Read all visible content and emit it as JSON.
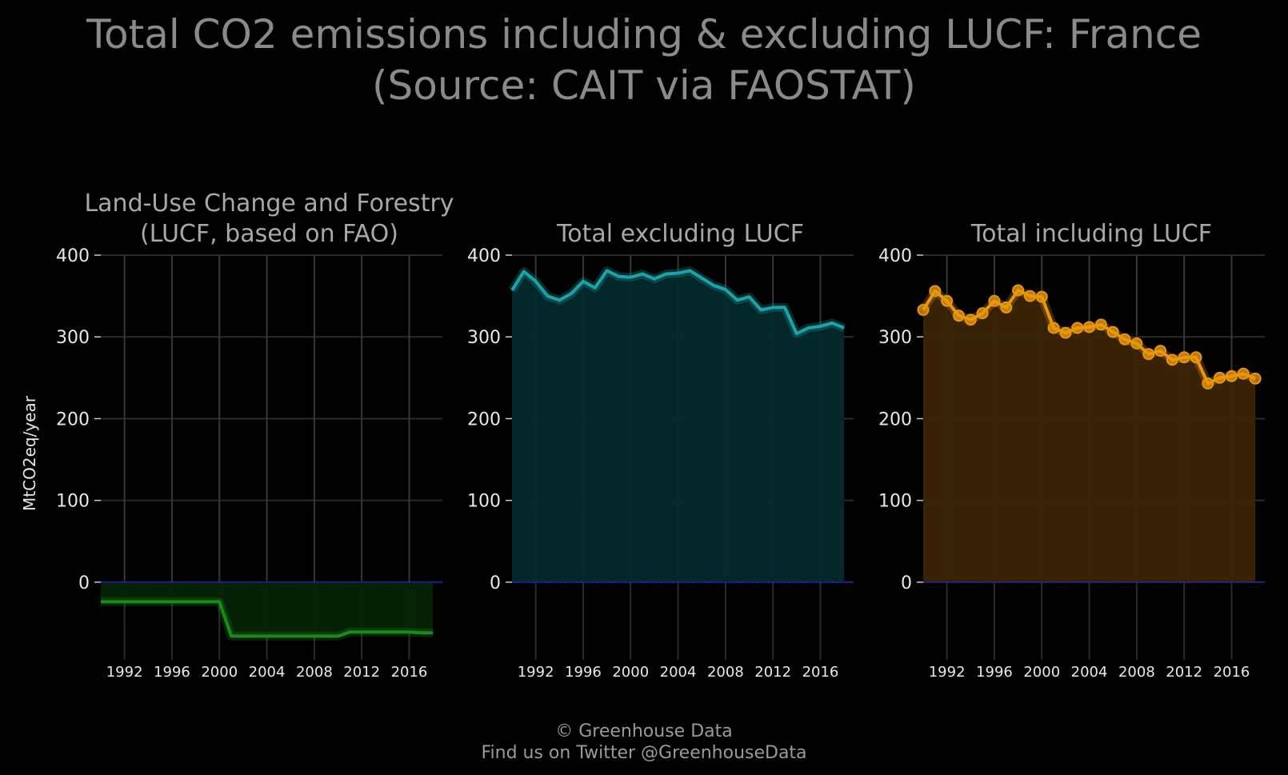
{
  "title": {
    "line1": "Total CO2 emissions including & excluding LUCF: France",
    "line2": "(Source: CAIT via FAOSTAT)"
  },
  "credit": {
    "line1": "© Greenhouse Data",
    "line2": "Find us on Twitter @GreenhouseData"
  },
  "chart_data": [
    {
      "type": "area",
      "title_lines": [
        "Land-Use Change and Forestry",
        "(LUCF, based on FAO)"
      ],
      "ylabel": "MtCO2eq/year",
      "xlabel": "",
      "color": "#1a8a1a",
      "fill_color": "#062406",
      "markers": false,
      "ylim": [
        -95,
        400
      ],
      "yticks": [
        0,
        100,
        200,
        300,
        400
      ],
      "xlim": [
        1990,
        2018.8
      ],
      "xticks": [
        1992,
        1996,
        2000,
        2004,
        2008,
        2012,
        2016
      ],
      "grid": true,
      "zero_line_color": "#1a1aff",
      "x": [
        1990,
        1991,
        1992,
        1993,
        1994,
        1995,
        1996,
        1997,
        1998,
        1999,
        2000,
        2001,
        2002,
        2003,
        2004,
        2005,
        2006,
        2007,
        2008,
        2009,
        2010,
        2011,
        2012,
        2013,
        2014,
        2015,
        2016,
        2017,
        2018
      ],
      "y": [
        -24,
        -24,
        -24,
        -24,
        -24,
        -24,
        -24,
        -24,
        -24,
        -24,
        -24,
        -66,
        -66,
        -66,
        -66,
        -66,
        -66,
        -66,
        -66,
        -66,
        -66,
        -61,
        -61,
        -61,
        -61,
        -61,
        -61,
        -62,
        -62
      ]
    },
    {
      "type": "area",
      "title_lines": [
        "Total excluding LUCF"
      ],
      "ylabel": "",
      "xlabel": "",
      "color": "#1aa3a8",
      "fill_color": "#042a2c",
      "markers": false,
      "ylim": [
        -95,
        400
      ],
      "yticks": [
        0,
        100,
        200,
        300,
        400
      ],
      "xlim": [
        1990,
        2018.8
      ],
      "xticks": [
        1992,
        1996,
        2000,
        2004,
        2008,
        2012,
        2016
      ],
      "grid": true,
      "zero_line_color": "#1a1aff",
      "x": [
        1990,
        1991,
        1992,
        1993,
        1994,
        1995,
        1996,
        1997,
        1998,
        1999,
        2000,
        2001,
        2002,
        2003,
        2004,
        2005,
        2006,
        2007,
        2008,
        2009,
        2010,
        2011,
        2012,
        2013,
        2014,
        2015,
        2016,
        2017,
        2018
      ],
      "y": [
        357,
        380,
        368,
        350,
        345,
        353,
        368,
        360,
        381,
        374,
        373,
        377,
        371,
        377,
        378,
        381,
        372,
        363,
        358,
        345,
        349,
        333,
        336,
        336,
        304,
        311,
        313,
        317,
        311
      ]
    },
    {
      "type": "area",
      "title_lines": [
        "Total including LUCF"
      ],
      "ylabel": "",
      "xlabel": "",
      "color": "#e8960c",
      "fill_color": "#3a2406",
      "markers": true,
      "ylim": [
        -95,
        400
      ],
      "yticks": [
        0,
        100,
        200,
        300,
        400
      ],
      "xlim": [
        1990,
        2018.8
      ],
      "xticks": [
        1992,
        1996,
        2000,
        2004,
        2008,
        2012,
        2016
      ],
      "grid": true,
      "zero_line_color": "#1a1aff",
      "x": [
        1990,
        1991,
        1992,
        1993,
        1994,
        1995,
        1996,
        1997,
        1998,
        1999,
        2000,
        2001,
        2002,
        2003,
        2004,
        2005,
        2006,
        2007,
        2008,
        2009,
        2010,
        2011,
        2012,
        2013,
        2014,
        2015,
        2016,
        2017,
        2018
      ],
      "y": [
        333,
        356,
        344,
        326,
        321,
        329,
        344,
        336,
        357,
        350,
        349,
        311,
        305,
        311,
        312,
        315,
        306,
        297,
        292,
        279,
        283,
        272,
        275,
        275,
        243,
        250,
        252,
        255,
        249
      ]
    }
  ]
}
